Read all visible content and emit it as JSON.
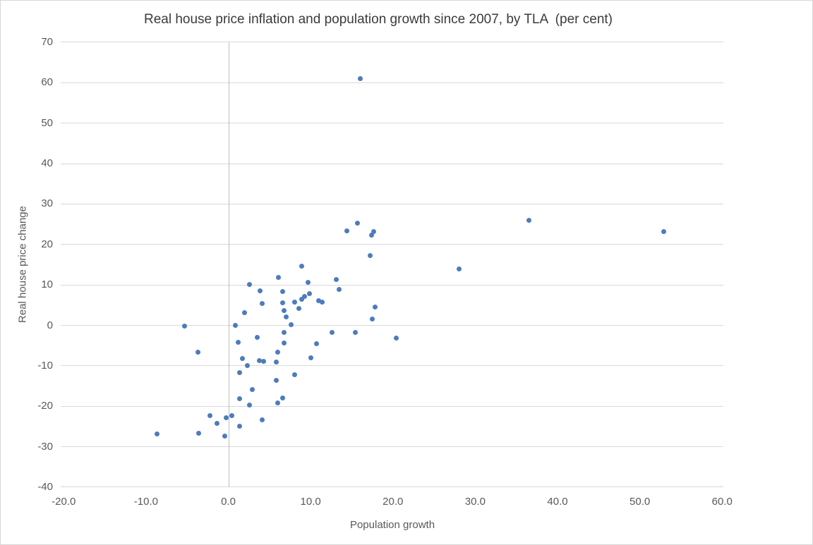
{
  "chart_data": {
    "type": "scatter",
    "title": "Real house price inflation and population growth since 2007, by TLA  (per cent)",
    "xlabel": "Population growth",
    "ylabel": "Real house price change",
    "xlim": [
      -20.0,
      60.0
    ],
    "ylim": [
      -40,
      70
    ],
    "grid": "horizontal-only",
    "legend_position": "none",
    "marker_color": "#4C7CBD",
    "gridline_color": "#d9d9d9",
    "axis_line_color": "#bfbfbf",
    "tick_label_color": "#595959",
    "title_color": "#3b3b3b",
    "xticks": [
      {
        "v": -20,
        "label": "-20.0"
      },
      {
        "v": -10,
        "label": "-10.0"
      },
      {
        "v": 0,
        "label": "0.0"
      },
      {
        "v": 10,
        "label": "10.0"
      },
      {
        "v": 20,
        "label": "20.0"
      },
      {
        "v": 30,
        "label": "30.0"
      },
      {
        "v": 40,
        "label": "40.0"
      },
      {
        "v": 50,
        "label": "50.0"
      },
      {
        "v": 60,
        "label": "60.0"
      }
    ],
    "yticks": [
      {
        "v": 70,
        "label": "70"
      },
      {
        "v": 60,
        "label": "60"
      },
      {
        "v": 50,
        "label": "50"
      },
      {
        "v": 40,
        "label": "40"
      },
      {
        "v": 30,
        "label": "30"
      },
      {
        "v": 20,
        "label": "20"
      },
      {
        "v": 10,
        "label": "10"
      },
      {
        "v": 0,
        "label": "0"
      },
      {
        "v": -10,
        "label": "-10"
      },
      {
        "v": -20,
        "label": "-20"
      },
      {
        "v": -30,
        "label": "-30"
      },
      {
        "v": -40,
        "label": "-40"
      }
    ],
    "points": [
      [
        16.0,
        61.0
      ],
      [
        36.5,
        25.9
      ],
      [
        52.9,
        23.2
      ],
      [
        28.0,
        13.9
      ],
      [
        15.7,
        25.2
      ],
      [
        14.4,
        23.3
      ],
      [
        17.4,
        22.3
      ],
      [
        17.7,
        23.2
      ],
      [
        17.2,
        17.3
      ],
      [
        17.8,
        4.6
      ],
      [
        17.5,
        1.6
      ],
      [
        20.4,
        -3.1
      ],
      [
        15.4,
        -1.8
      ],
      [
        12.6,
        -1.8
      ],
      [
        8.9,
        14.7
      ],
      [
        6.1,
        11.9
      ],
      [
        13.1,
        11.4
      ],
      [
        9.7,
        10.7
      ],
      [
        2.6,
        10.1
      ],
      [
        3.9,
        8.5
      ],
      [
        6.6,
        8.3
      ],
      [
        13.5,
        8.9
      ],
      [
        8.1,
        5.8
      ],
      [
        8.9,
        6.4
      ],
      [
        9.3,
        7.2
      ],
      [
        9.9,
        7.9
      ],
      [
        11.0,
        6.1
      ],
      [
        11.4,
        5.7
      ],
      [
        6.6,
        5.5
      ],
      [
        4.1,
        5.4
      ],
      [
        2.0,
        3.1
      ],
      [
        6.8,
        3.6
      ],
      [
        8.6,
        4.1
      ],
      [
        7.0,
        2.1
      ],
      [
        7.6,
        0.1
      ],
      [
        0.9,
        0.0
      ],
      [
        -5.3,
        -0.1
      ],
      [
        6.8,
        -1.7
      ],
      [
        3.5,
        -3.0
      ],
      [
        1.2,
        -4.2
      ],
      [
        6.8,
        -4.4
      ],
      [
        10.7,
        -4.5
      ],
      [
        6.0,
        -6.6
      ],
      [
        -3.7,
        -6.6
      ],
      [
        10.0,
        -8.0
      ],
      [
        1.7,
        -8.2
      ],
      [
        3.8,
        -8.8
      ],
      [
        4.3,
        -8.9
      ],
      [
        5.8,
        -9.0
      ],
      [
        2.3,
        -9.9
      ],
      [
        1.4,
        -11.7
      ],
      [
        8.1,
        -12.2
      ],
      [
        5.8,
        -13.6
      ],
      [
        2.9,
        -15.8
      ],
      [
        1.4,
        -18.1
      ],
      [
        6.6,
        -17.9
      ],
      [
        6.0,
        -19.1
      ],
      [
        2.6,
        -19.7
      ],
      [
        -2.2,
        -22.3
      ],
      [
        -0.3,
        -22.8
      ],
      [
        0.4,
        -22.4
      ],
      [
        4.1,
        -23.4
      ],
      [
        -1.4,
        -24.3
      ],
      [
        1.4,
        -25.0
      ],
      [
        -3.6,
        -26.6
      ],
      [
        -0.4,
        -27.3
      ],
      [
        -8.7,
        -26.9
      ]
    ]
  }
}
